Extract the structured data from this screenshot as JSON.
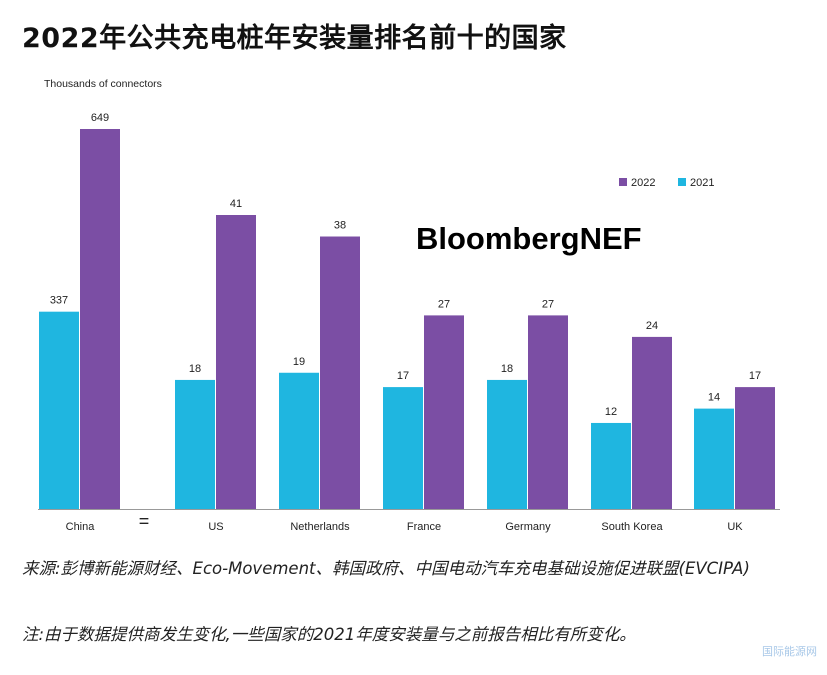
{
  "title": "2022年公共充电桩年安装量排名前十的国家",
  "brand": "BloombergNEF",
  "break_mark": "=",
  "chart_data": {
    "type": "bar",
    "ylabel": "Thousands  of connectors",
    "categories": [
      "China",
      "US",
      "Netherlands",
      "France",
      "Germany",
      "South Korea",
      "UK"
    ],
    "series": [
      {
        "name": "2021",
        "color": "#1fb6e0",
        "values": [
          337,
          18,
          19,
          17,
          18,
          12,
          14
        ]
      },
      {
        "name": "2022",
        "color": "#7b4ea4",
        "values": [
          649,
          41,
          38,
          27,
          27,
          24,
          17
        ]
      }
    ],
    "legend": {
      "order": [
        "2022",
        "2021"
      ],
      "position": "top-right"
    },
    "notes": "China plotted on a separate scale from the other countries (axis break shown between China and US)"
  },
  "footer": {
    "source": "来源:彭博新能源财经、Eco-Movement、韩国政府、中国电动汽车充电基础设施促进联盟(EVCIPA)",
    "note": "注:由于数据提供商发生变化,一些国家的2021年度安装量与之前报告相比有所变化。"
  },
  "watermark": "国际能源网"
}
